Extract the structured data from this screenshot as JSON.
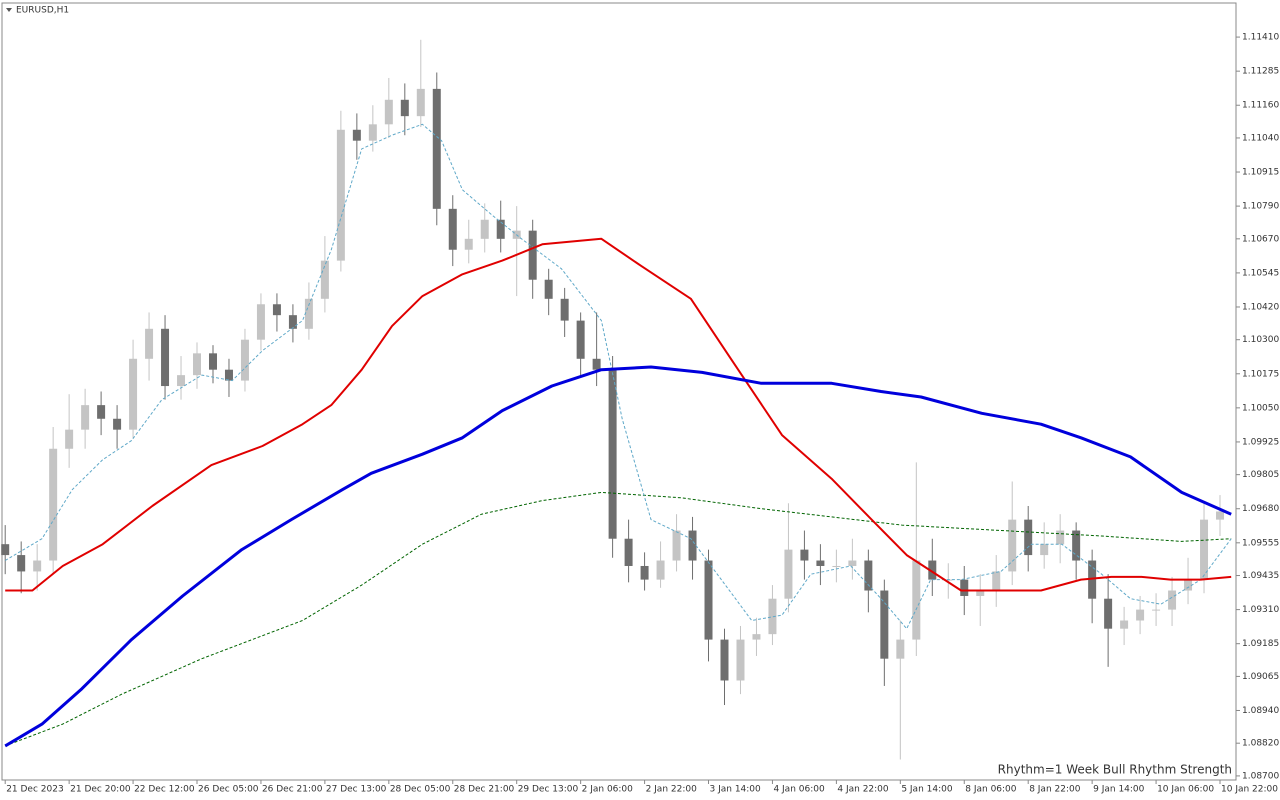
{
  "chart_data": {
    "type": "candlestick",
    "title": "EURUSD,H1",
    "annotation": "Rhythm=1 Week Bull Rhythm Strength",
    "annotation_color": "#b4f0b4",
    "up_color": "#c4c4c4",
    "down_color": "#6e6e6e",
    "categories": [
      "21 Dec 2023",
      null,
      null,
      null,
      "21 Dec 20:00",
      null,
      null,
      null,
      "22 Dec 12:00",
      null,
      null,
      null,
      "26 Dec 05:00",
      null,
      null,
      null,
      "26 Dec 21:00",
      null,
      null,
      null,
      "27 Dec 13:00",
      null,
      null,
      null,
      "28 Dec 05:00",
      null,
      null,
      null,
      "28 Dec 21:00",
      null,
      null,
      null,
      "29 Dec 13:00",
      null,
      null,
      null,
      "2 Jan 06:00",
      null,
      null,
      null,
      "2 Jan 22:00",
      null,
      null,
      null,
      "3 Jan 14:00",
      null,
      null,
      null,
      "4 Jan 06:00",
      null,
      null,
      null,
      "4 Jan 22:00",
      null,
      null,
      null,
      "5 Jan 14:00",
      null,
      null,
      null,
      "8 Jan 06:00",
      null,
      null,
      null,
      "8 Jan 22:00",
      null,
      null,
      null,
      "9 Jan 14:00",
      null,
      null,
      null,
      "10 Jan 06:00",
      null,
      null,
      null,
      "10 Jan 22:00"
    ],
    "open": [
      1.0955,
      1.0951,
      1.0945,
      1.0949,
      1.099,
      1.0997,
      1.1006,
      1.1001,
      1.0997,
      1.1023,
      1.1034,
      1.1013,
      1.1017,
      1.1025,
      1.1019,
      1.1015,
      1.103,
      1.1043,
      1.1039,
      1.1034,
      1.1045,
      1.1059,
      1.1107,
      1.1103,
      1.1109,
      1.1118,
      1.1112,
      1.1122,
      1.1078,
      1.1063,
      1.1067,
      1.1074,
      1.1067,
      1.107,
      1.1052,
      1.1045,
      1.1037,
      1.1023,
      1.1019,
      1.0957,
      1.0947,
      1.0942,
      1.0949,
      1.096,
      1.0949,
      1.092,
      1.0905,
      1.092,
      1.0922,
      1.0935,
      1.0953,
      1.0949,
      1.0947,
      1.0947,
      1.0949,
      1.0938,
      1.0913,
      1.092,
      1.0949,
      1.0942,
      1.0942,
      1.0936,
      1.0938,
      1.0945,
      1.0964,
      1.0951,
      1.0955,
      1.096,
      1.0949,
      1.0935,
      1.0924,
      1.0927,
      1.0931,
      1.0931,
      1.0938,
      1.0942,
      1.0964
    ],
    "high": [
      1.0962,
      1.0956,
      1.0955,
      1.0998,
      1.101,
      1.1012,
      1.1011,
      1.1006,
      1.103,
      1.104,
      1.1039,
      1.1024,
      1.1029,
      1.1028,
      1.1023,
      1.1034,
      1.1047,
      1.1047,
      1.1043,
      1.1051,
      1.1068,
      1.1114,
      1.1113,
      1.1116,
      1.1126,
      1.1124,
      1.114,
      1.1128,
      1.1083,
      1.1074,
      1.108,
      1.1081,
      1.1079,
      1.1074,
      1.1056,
      1.1049,
      1.104,
      1.104,
      1.1024,
      1.0964,
      1.0952,
      1.0956,
      1.0966,
      1.0965,
      1.0953,
      1.0924,
      1.0925,
      1.0928,
      1.094,
      1.097,
      1.096,
      1.0955,
      1.0953,
      1.0957,
      1.0953,
      1.0942,
      1.0927,
      1.0985,
      1.0957,
      1.0948,
      1.0947,
      1.0944,
      1.0951,
      1.0978,
      1.0969,
      1.0963,
      1.0966,
      1.0963,
      1.0953,
      1.0944,
      1.0932,
      1.0936,
      1.0937,
      1.0943,
      1.095,
      1.097,
      1.0973
    ],
    "low": [
      1.0944,
      1.0937,
      1.0938,
      1.0944,
      1.0983,
      1.099,
      1.0995,
      1.099,
      1.0994,
      1.1015,
      1.1008,
      1.1008,
      1.1012,
      1.1014,
      1.1009,
      1.1011,
      1.1026,
      1.1033,
      1.1029,
      1.103,
      1.104,
      1.1055,
      1.1096,
      1.1099,
      1.1104,
      1.1105,
      1.1108,
      1.1072,
      1.1057,
      1.1058,
      1.1062,
      1.1062,
      1.1046,
      1.1045,
      1.1039,
      1.1031,
      1.1016,
      1.1013,
      1.095,
      1.0941,
      1.0938,
      1.0939,
      1.0945,
      1.0942,
      1.0912,
      1.0896,
      1.09,
      1.0914,
      1.0918,
      1.093,
      1.0942,
      1.094,
      1.0941,
      1.0942,
      1.093,
      1.0903,
      1.0876,
      1.0914,
      1.0936,
      1.0935,
      1.0929,
      1.0925,
      1.0932,
      1.094,
      1.0945,
      1.0946,
      1.0948,
      1.0942,
      1.0926,
      1.091,
      1.0918,
      1.0922,
      1.0925,
      1.0925,
      1.0933,
      1.0937,
      1.0958
    ],
    "close": [
      1.0951,
      1.0945,
      1.0949,
      1.099,
      1.0997,
      1.1006,
      1.1001,
      1.0997,
      1.1023,
      1.1034,
      1.1013,
      1.1017,
      1.1025,
      1.1019,
      1.1015,
      1.103,
      1.1043,
      1.1039,
      1.1034,
      1.1045,
      1.1059,
      1.1107,
      1.1103,
      1.1109,
      1.1118,
      1.1112,
      1.1122,
      1.1078,
      1.1063,
      1.1067,
      1.1074,
      1.1067,
      1.107,
      1.1052,
      1.1045,
      1.1037,
      1.1023,
      1.1019,
      1.0957,
      1.0947,
      1.0942,
      1.0949,
      1.096,
      1.0949,
      1.092,
      1.0905,
      1.092,
      1.0922,
      1.0935,
      1.0953,
      1.0949,
      1.0947,
      1.0947,
      1.0949,
      1.0938,
      1.0913,
      1.092,
      1.0949,
      1.0942,
      1.0942,
      1.0936,
      1.0938,
      1.0945,
      1.0964,
      1.0951,
      1.0955,
      1.096,
      1.0949,
      1.0935,
      1.0924,
      1.0927,
      1.0931,
      1.0931,
      1.0938,
      1.0942,
      1.0964,
      1.0967
    ],
    "xlim": [
      -0.2,
      77
    ],
    "ylim": [
      1.08685,
      1.11535
    ],
    "yticks": [
      {
        "value": 1.1141,
        "label": "1.11410"
      },
      {
        "value": 1.11285,
        "label": "1.11285"
      },
      {
        "value": 1.1116,
        "label": "1.11160"
      },
      {
        "value": 1.1104,
        "label": "1.11040"
      },
      {
        "value": 1.10915,
        "label": "1.10915"
      },
      {
        "value": 1.1079,
        "label": "1.10790"
      },
      {
        "value": 1.1067,
        "label": "1.10670"
      },
      {
        "value": 1.10545,
        "label": "1.10545"
      },
      {
        "value": 1.1042,
        "label": "1.10420"
      },
      {
        "value": 1.103,
        "label": "1.10300"
      },
      {
        "value": 1.10175,
        "label": "1.10175"
      },
      {
        "value": 1.1005,
        "label": "1.10050"
      },
      {
        "value": 1.09925,
        "label": "1.09925"
      },
      {
        "value": 1.09805,
        "label": "1.09805"
      },
      {
        "value": 1.0968,
        "label": "1.09680"
      },
      {
        "value": 1.09555,
        "label": "1.09555"
      },
      {
        "value": 1.09435,
        "label": "1.09435"
      },
      {
        "value": 1.0931,
        "label": "1.09310"
      },
      {
        "value": 1.09185,
        "label": "1.09185"
      },
      {
        "value": 1.09065,
        "label": "1.09065"
      },
      {
        "value": 1.0894,
        "label": "1.08940"
      },
      {
        "value": 1.0882,
        "label": "1.08820"
      },
      {
        "value": 1.087,
        "label": "1.08700"
      }
    ],
    "series": [
      {
        "color": "#006400",
        "width": 1,
        "dash": true,
        "x": [
          0,
          3.6,
          7.3,
          12.3,
          18.6,
          22.3,
          26.1,
          29.8,
          33.6,
          37.3,
          42.3,
          47.3,
          51.7,
          56.1,
          62.3,
          68.6,
          73.6,
          76.7
        ],
        "values": [
          1.0881,
          1.0889,
          1.09,
          1.0913,
          1.0927,
          1.094,
          1.0955,
          1.0966,
          1.0971,
          1.0974,
          1.0972,
          1.0968,
          1.0965,
          1.0962,
          1.096,
          1.0958,
          1.0956,
          1.0957
        ]
      },
      {
        "color": "#5fa8c8",
        "width": 1,
        "dash": true,
        "x": [
          0,
          2.3,
          4.2,
          6.1,
          7.9,
          9.8,
          12.3,
          14.2,
          16.1,
          18.6,
          20.4,
          22.3,
          24.2,
          26.1,
          27.3,
          28.6,
          30.4,
          32.3,
          34.8,
          37.3,
          38.6,
          40.4,
          42.9,
          44.8,
          46.7,
          48.6,
          50.4,
          52.9,
          54.8,
          56.4,
          57.9,
          59.8,
          62.3,
          64.2,
          66.1,
          68.6,
          70.4,
          72.3,
          74.8,
          76.7
        ],
        "values": [
          1.0949,
          1.0957,
          1.0975,
          1.0986,
          1.0993,
          1.1008,
          1.1017,
          1.1015,
          1.1026,
          1.1037,
          1.1063,
          1.11,
          1.1105,
          1.1109,
          1.1103,
          1.1085,
          1.1076,
          1.1067,
          1.1056,
          1.1037,
          1.1001,
          1.0964,
          1.0957,
          1.0942,
          1.0927,
          1.0929,
          1.0944,
          1.0947,
          1.0935,
          1.0924,
          1.0942,
          1.0942,
          1.0945,
          1.0955,
          1.0955,
          1.0944,
          1.0935,
          1.0933,
          1.0942,
          1.0957
        ]
      },
      {
        "color": "#e00000",
        "width": 2,
        "dash": false,
        "x": [
          0,
          1.7,
          3.6,
          6.1,
          9.2,
          12.9,
          16.1,
          18.6,
          20.4,
          22.3,
          24.2,
          26.1,
          28.6,
          31.1,
          33.6,
          37.3,
          39.8,
          42.9,
          45.4,
          48.6,
          51.7,
          54.2,
          56.4,
          59.8,
          62.3,
          64.8,
          67.3,
          69.2,
          71.1,
          72.9,
          74.8,
          76.7
        ],
        "values": [
          1.0938,
          1.0938,
          1.0947,
          1.0955,
          1.0969,
          1.0984,
          1.0991,
          1.0999,
          1.1006,
          1.1019,
          1.1035,
          1.1046,
          1.1054,
          1.1059,
          1.1065,
          1.1067,
          1.1057,
          1.1045,
          1.1023,
          1.0995,
          1.0979,
          1.0964,
          1.0951,
          1.0938,
          1.0938,
          1.0938,
          1.0942,
          1.0943,
          1.0943,
          1.0942,
          1.0942,
          1.0943
        ]
      },
      {
        "color": "#0000dc",
        "width": 3,
        "dash": false,
        "x": [
          0,
          2.3,
          4.8,
          7.9,
          11.1,
          14.8,
          17.9,
          21.1,
          22.9,
          26.1,
          28.6,
          31.1,
          34.2,
          37.3,
          40.4,
          43.6,
          47.3,
          51.7,
          54.8,
          57.3,
          61.1,
          64.8,
          67.3,
          70.4,
          73.6,
          76.7
        ],
        "values": [
          1.0881,
          1.0889,
          1.0902,
          1.092,
          1.0936,
          1.0953,
          1.0964,
          1.0975,
          1.0981,
          1.0988,
          1.0994,
          1.1004,
          1.1013,
          1.1019,
          1.102,
          1.1018,
          1.1014,
          1.1014,
          1.1011,
          1.1009,
          1.1003,
          1.0999,
          1.0994,
          1.0987,
          1.0974,
          1.0966
        ]
      }
    ]
  }
}
